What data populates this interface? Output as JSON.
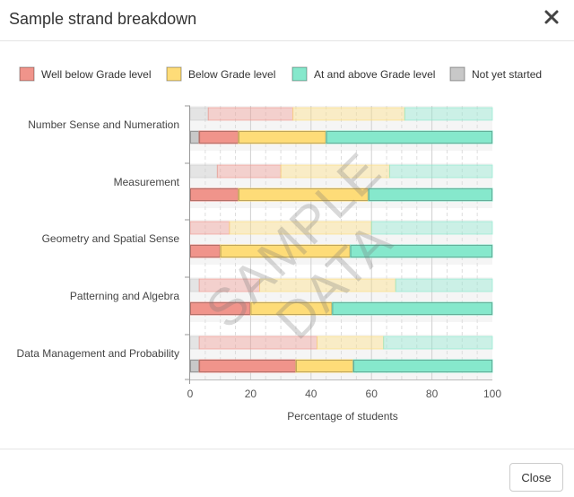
{
  "modal": {
    "title": "Sample strand breakdown",
    "close_label": "Close"
  },
  "watermark": "SAMPLE DATA",
  "chart_data": {
    "type": "bar",
    "stacked": true,
    "orientation": "horizontal",
    "xlabel": "Percentage of students",
    "xlim": [
      0,
      100
    ],
    "xticks": [
      0,
      20,
      40,
      60,
      80,
      100
    ],
    "legend_position": "top",
    "categories": [
      "Number Sense and Numeration",
      "Measurement",
      "Geometry and Spatial Sense",
      "Patterning and Algebra",
      "Data Management and Probability"
    ],
    "series": [
      {
        "name": "Not yet started",
        "color": "#c8c8c8"
      },
      {
        "name": "Well below Grade level",
        "color": "#f0948b"
      },
      {
        "name": "Below Grade level",
        "color": "#fedc78"
      },
      {
        "name": "At and above Grade level",
        "color": "#86e8cc"
      }
    ],
    "legend_order": [
      "Well below Grade level",
      "Below Grade level",
      "At and above Grade level",
      "Not yet started"
    ],
    "comparison_bars_faded": {
      "Not yet started": [
        6,
        9,
        0,
        3,
        3
      ],
      "Well below Grade level": [
        28,
        21,
        13,
        20,
        39
      ],
      "Below Grade level": [
        37,
        36,
        47,
        45,
        22
      ],
      "At and above Grade level": [
        29,
        34,
        40,
        32,
        36
      ]
    },
    "primary_bars": {
      "Not yet started": [
        3,
        0,
        0,
        0,
        3
      ],
      "Well below Grade level": [
        13,
        16,
        10,
        20,
        32
      ],
      "Below Grade level": [
        29,
        43,
        43,
        27,
        19
      ],
      "At and above Grade level": [
        55,
        41,
        47,
        53,
        46
      ]
    }
  }
}
